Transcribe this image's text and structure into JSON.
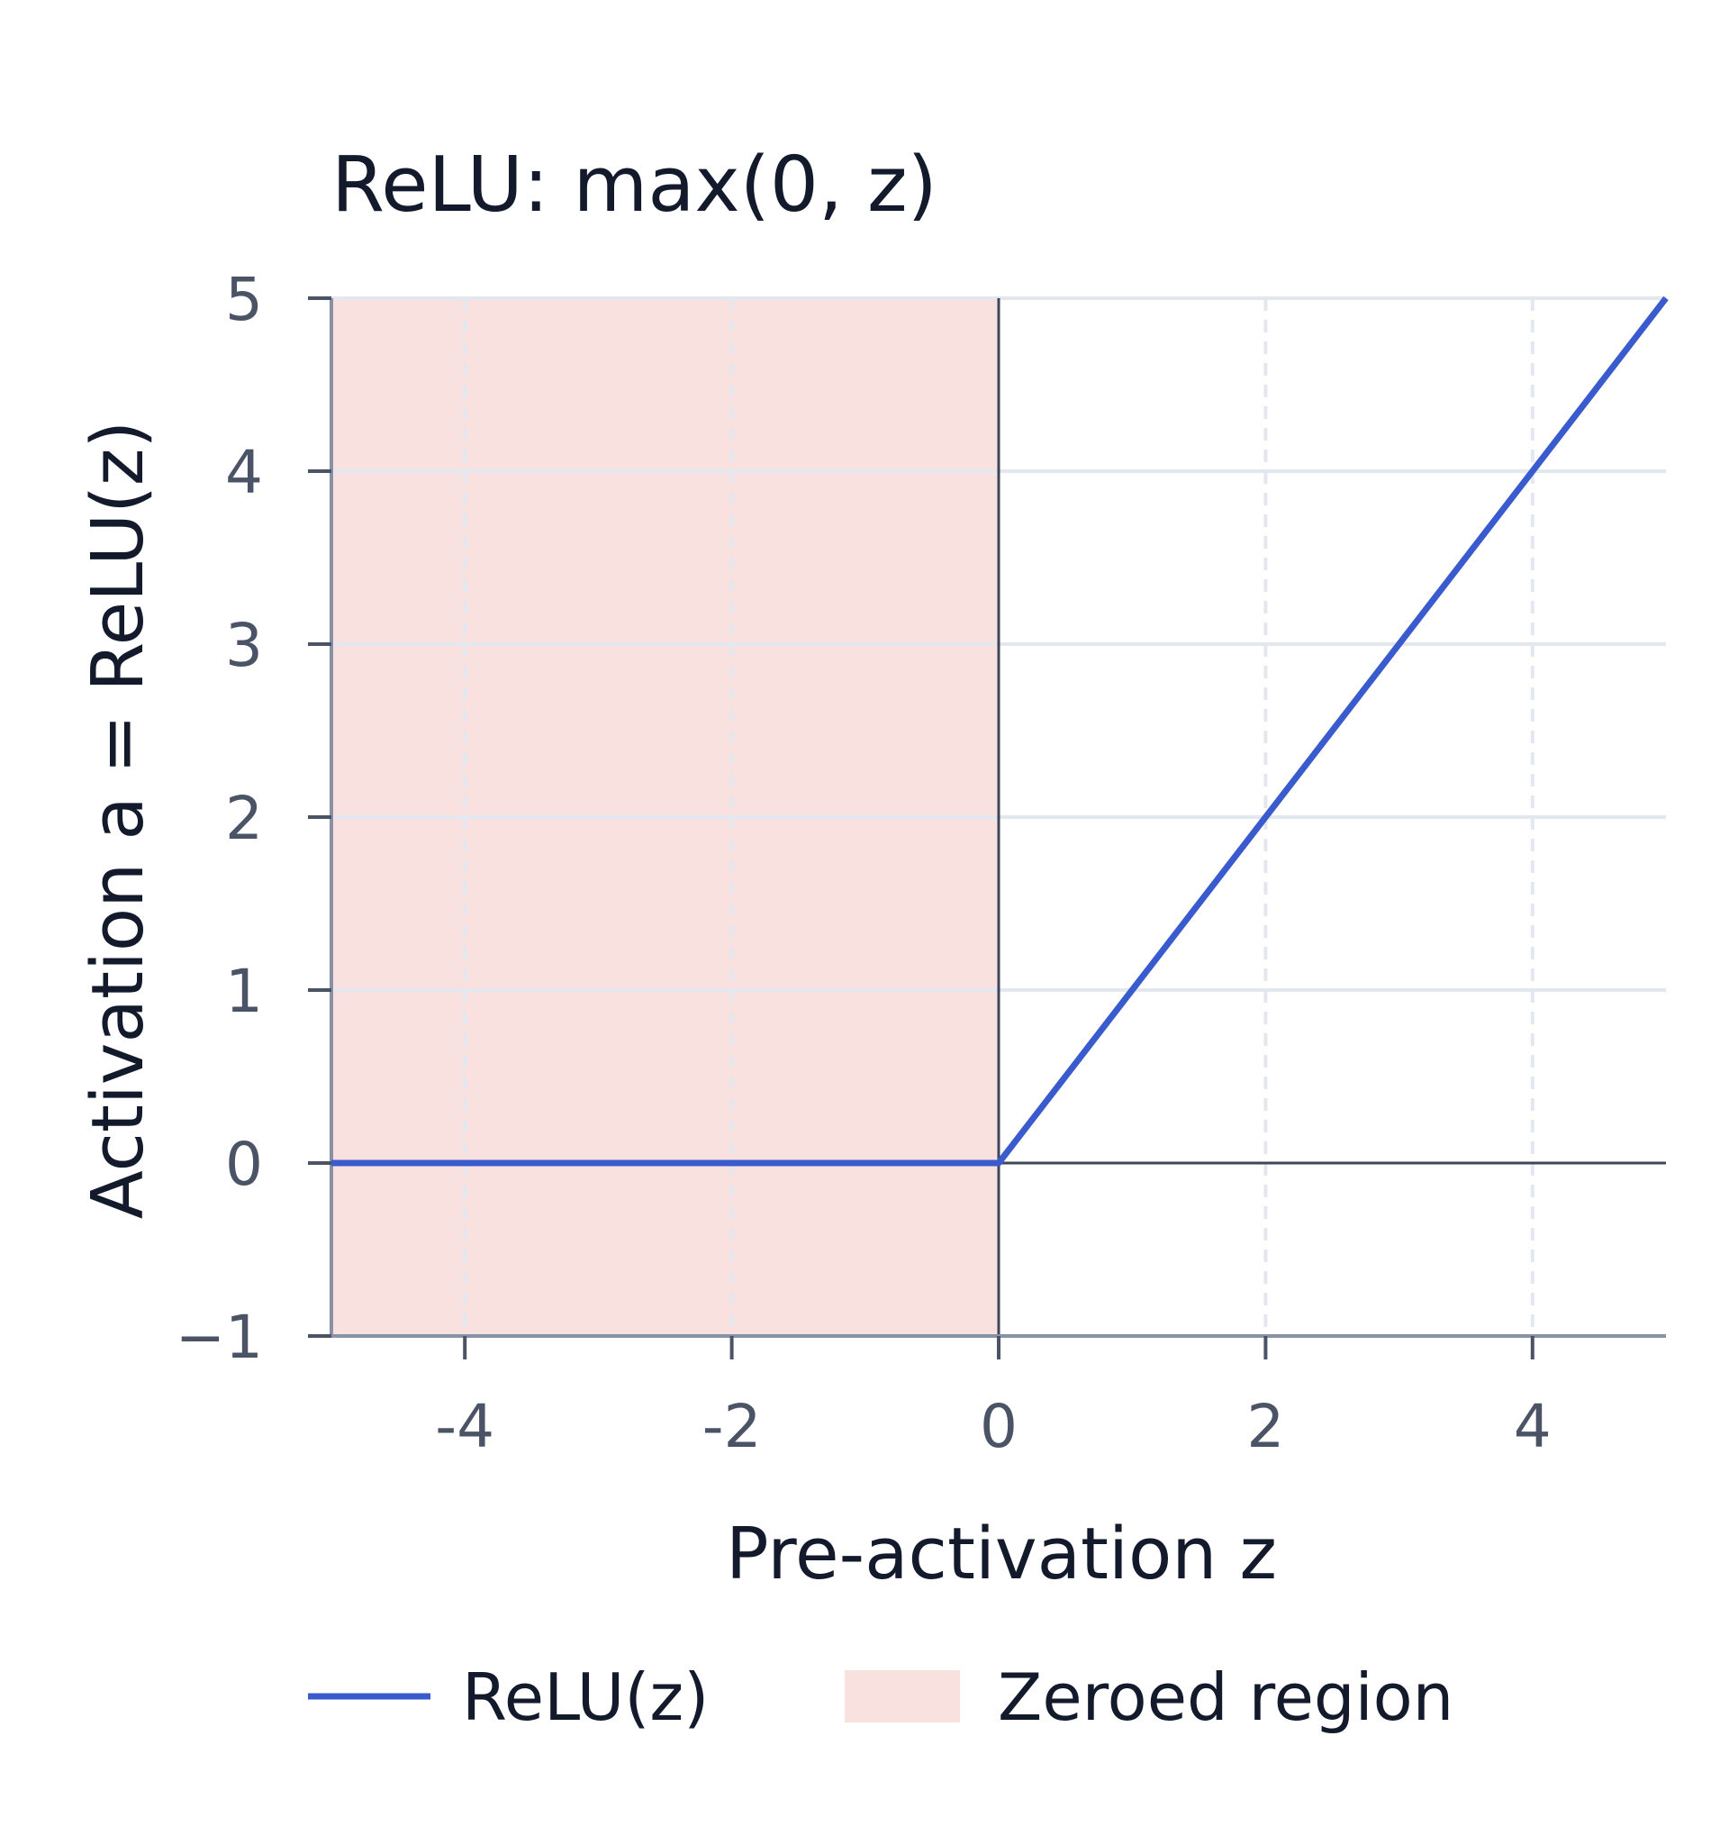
{
  "chart_data": {
    "type": "line",
    "title": "ReLU: max(0, z)",
    "xlabel": "Pre-activation z",
    "ylabel": "Activation a = ReLU(z)",
    "xlim": [
      -5,
      5
    ],
    "ylim": [
      -1,
      5
    ],
    "x_ticks": [
      -4,
      -2,
      0,
      2,
      4
    ],
    "y_ticks": [
      -1,
      0,
      1,
      2,
      3,
      4,
      5
    ],
    "grid": true,
    "legend_position": "bottom",
    "series": [
      {
        "name": "ReLU(z)",
        "color": "#3a5bcd",
        "x": [
          -5,
          0,
          5
        ],
        "y": [
          0,
          0,
          5
        ]
      }
    ],
    "shaded_regions": [
      {
        "name": "Zeroed region",
        "x_range": [
          -5,
          0
        ],
        "color": "#f8e1de"
      }
    ]
  }
}
